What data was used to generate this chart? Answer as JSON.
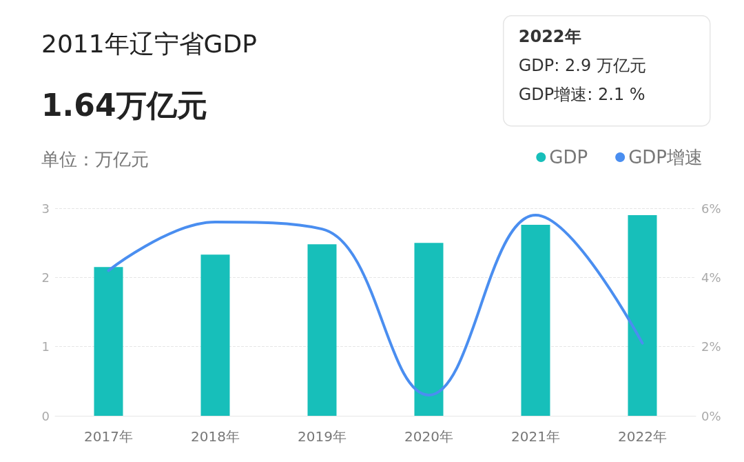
{
  "chart_data": {
    "type": "bar",
    "title": "2011年辽宁省GDP",
    "subtitle": "1.64万亿元",
    "ylabel": "单位：万亿元",
    "categories": [
      "2017年",
      "2018年",
      "2019年",
      "2020年",
      "2021年",
      "2022年"
    ],
    "series": [
      {
        "name": "GDP",
        "color": "#17bfba",
        "values": [
          2.15,
          2.33,
          2.48,
          2.5,
          2.76,
          2.9
        ]
      },
      {
        "name": "GDP增速",
        "type": "line",
        "axis": "y2",
        "color": "#4a8ef0",
        "values": [
          4.2,
          5.6,
          5.4,
          0.6,
          5.8,
          2.1
        ]
      }
    ],
    "ylim": [
      0,
      3
    ],
    "yticks": [
      0,
      1,
      2,
      3
    ],
    "y2lim": [
      0,
      6
    ],
    "y2ticks": [
      {
        "value": 0,
        "label": "0%"
      },
      {
        "value": 2,
        "label": "2%"
      },
      {
        "value": 4,
        "label": "4%"
      },
      {
        "value": 6,
        "label": "6%"
      }
    ],
    "annotations": [
      "2022年",
      "GDP: 2.9 万亿元",
      "GDP增速: 2.1 %"
    ],
    "grid": "y",
    "legend": "top right",
    "marker": "none",
    "line_style": "solid"
  }
}
